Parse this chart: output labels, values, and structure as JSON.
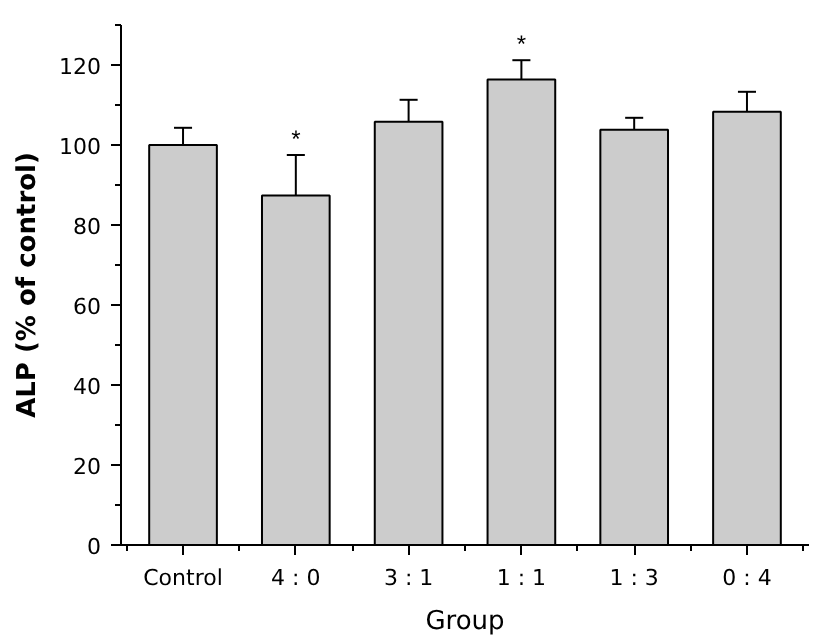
{
  "chart_data": {
    "type": "bar",
    "xlabel": "Group",
    "ylabel": "ALP (% of control)",
    "categories": [
      "Control",
      "4 : 0",
      "3 : 1",
      "1 : 1",
      "1 : 3",
      "0 : 4"
    ],
    "values": [
      100,
      87.4,
      105.8,
      116.4,
      103.8,
      108.3
    ],
    "errors": [
      [
        100,
        104.3
      ],
      [
        87.4,
        97.5
      ],
      [
        105.8,
        111.3
      ],
      [
        116.4,
        121.2
      ],
      [
        103.8,
        106.8
      ],
      [
        108.3,
        113.3
      ]
    ],
    "color": "#cccccc",
    "annotations": [
      {
        "text": "*",
        "x": "4 : 0",
        "y": 97.5
      },
      {
        "text": "*",
        "x": "1 : 1",
        "y": 121.2
      }
    ],
    "ylim": [
      0,
      130
    ],
    "yticks": [
      0,
      20,
      40,
      60,
      80,
      100,
      120
    ],
    "grid": false
  }
}
